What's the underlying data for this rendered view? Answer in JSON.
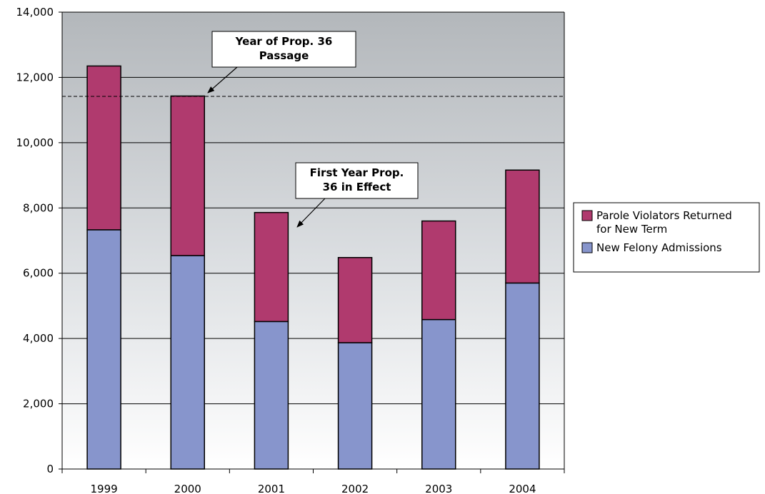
{
  "chart_data": {
    "type": "bar",
    "stacked": true,
    "title": "",
    "xlabel": "",
    "ylabel": "",
    "categories": [
      "1999",
      "2000",
      "2001",
      "2002",
      "2003",
      "2004"
    ],
    "series": [
      {
        "name": "New Felony Admissions",
        "color": "#8795cc",
        "values": [
          7330,
          6540,
          4520,
          3870,
          4580,
          5700
        ]
      },
      {
        "name": "Parole Violators Returned for New Term",
        "color": "#b03a6e",
        "values": [
          5020,
          4890,
          3340,
          2610,
          3020,
          3460
        ]
      }
    ],
    "ylim": [
      0,
      14000
    ],
    "yticks": [
      "0",
      "2,000",
      "4,000",
      "6,000",
      "8,000",
      "10,000",
      "12,000",
      "14,000"
    ],
    "grid": true,
    "legend_position": "right",
    "reference_line": {
      "value": 11420,
      "style": "dashed"
    },
    "annotations": [
      {
        "lines": [
          "Year of Prop. 36",
          "Passage"
        ],
        "points_to": "2000"
      },
      {
        "lines": [
          "First Year Prop.",
          "36 in Effect"
        ],
        "points_to": "2001"
      }
    ],
    "legend": [
      {
        "lines": [
          "Parole Violators Returned",
          "for New Term"
        ],
        "color": "#b03a6e"
      },
      {
        "lines": [
          "New Felony Admissions"
        ],
        "color": "#8795cc"
      }
    ]
  }
}
